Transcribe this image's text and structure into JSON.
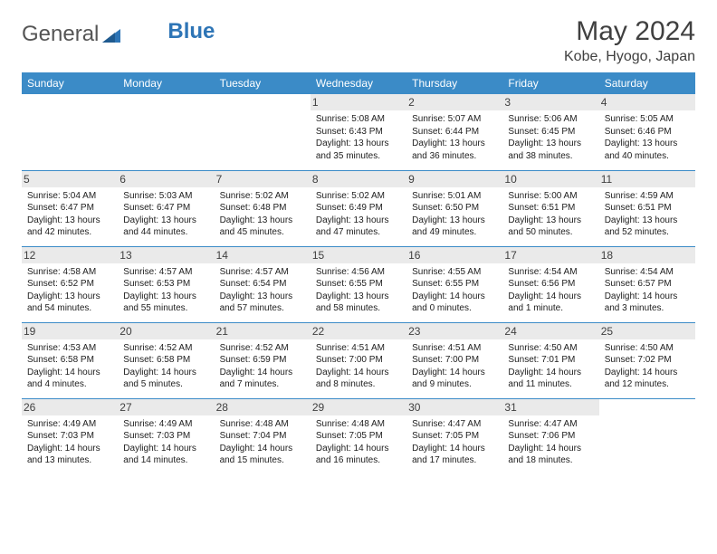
{
  "logo": {
    "text1": "General",
    "text2": "Blue"
  },
  "title": "May 2024",
  "location": "Kobe, Hyogo, Japan",
  "colors": {
    "header_bg": "#3b8bc7",
    "header_text": "#ffffff",
    "daynum_bg": "#eaeaea",
    "border": "#3b8bc7",
    "logo_gray": "#555555",
    "logo_blue": "#2e75b6",
    "text": "#202020"
  },
  "daysOfWeek": [
    "Sunday",
    "Monday",
    "Tuesday",
    "Wednesday",
    "Thursday",
    "Friday",
    "Saturday"
  ],
  "weeks": [
    [
      null,
      null,
      null,
      {
        "n": "1",
        "sr": "Sunrise: 5:08 AM",
        "ss": "Sunset: 6:43 PM",
        "d1": "Daylight: 13 hours",
        "d2": "and 35 minutes."
      },
      {
        "n": "2",
        "sr": "Sunrise: 5:07 AM",
        "ss": "Sunset: 6:44 PM",
        "d1": "Daylight: 13 hours",
        "d2": "and 36 minutes."
      },
      {
        "n": "3",
        "sr": "Sunrise: 5:06 AM",
        "ss": "Sunset: 6:45 PM",
        "d1": "Daylight: 13 hours",
        "d2": "and 38 minutes."
      },
      {
        "n": "4",
        "sr": "Sunrise: 5:05 AM",
        "ss": "Sunset: 6:46 PM",
        "d1": "Daylight: 13 hours",
        "d2": "and 40 minutes."
      }
    ],
    [
      {
        "n": "5",
        "sr": "Sunrise: 5:04 AM",
        "ss": "Sunset: 6:47 PM",
        "d1": "Daylight: 13 hours",
        "d2": "and 42 minutes."
      },
      {
        "n": "6",
        "sr": "Sunrise: 5:03 AM",
        "ss": "Sunset: 6:47 PM",
        "d1": "Daylight: 13 hours",
        "d2": "and 44 minutes."
      },
      {
        "n": "7",
        "sr": "Sunrise: 5:02 AM",
        "ss": "Sunset: 6:48 PM",
        "d1": "Daylight: 13 hours",
        "d2": "and 45 minutes."
      },
      {
        "n": "8",
        "sr": "Sunrise: 5:02 AM",
        "ss": "Sunset: 6:49 PM",
        "d1": "Daylight: 13 hours",
        "d2": "and 47 minutes."
      },
      {
        "n": "9",
        "sr": "Sunrise: 5:01 AM",
        "ss": "Sunset: 6:50 PM",
        "d1": "Daylight: 13 hours",
        "d2": "and 49 minutes."
      },
      {
        "n": "10",
        "sr": "Sunrise: 5:00 AM",
        "ss": "Sunset: 6:51 PM",
        "d1": "Daylight: 13 hours",
        "d2": "and 50 minutes."
      },
      {
        "n": "11",
        "sr": "Sunrise: 4:59 AM",
        "ss": "Sunset: 6:51 PM",
        "d1": "Daylight: 13 hours",
        "d2": "and 52 minutes."
      }
    ],
    [
      {
        "n": "12",
        "sr": "Sunrise: 4:58 AM",
        "ss": "Sunset: 6:52 PM",
        "d1": "Daylight: 13 hours",
        "d2": "and 54 minutes."
      },
      {
        "n": "13",
        "sr": "Sunrise: 4:57 AM",
        "ss": "Sunset: 6:53 PM",
        "d1": "Daylight: 13 hours",
        "d2": "and 55 minutes."
      },
      {
        "n": "14",
        "sr": "Sunrise: 4:57 AM",
        "ss": "Sunset: 6:54 PM",
        "d1": "Daylight: 13 hours",
        "d2": "and 57 minutes."
      },
      {
        "n": "15",
        "sr": "Sunrise: 4:56 AM",
        "ss": "Sunset: 6:55 PM",
        "d1": "Daylight: 13 hours",
        "d2": "and 58 minutes."
      },
      {
        "n": "16",
        "sr": "Sunrise: 4:55 AM",
        "ss": "Sunset: 6:55 PM",
        "d1": "Daylight: 14 hours",
        "d2": "and 0 minutes."
      },
      {
        "n": "17",
        "sr": "Sunrise: 4:54 AM",
        "ss": "Sunset: 6:56 PM",
        "d1": "Daylight: 14 hours",
        "d2": "and 1 minute."
      },
      {
        "n": "18",
        "sr": "Sunrise: 4:54 AM",
        "ss": "Sunset: 6:57 PM",
        "d1": "Daylight: 14 hours",
        "d2": "and 3 minutes."
      }
    ],
    [
      {
        "n": "19",
        "sr": "Sunrise: 4:53 AM",
        "ss": "Sunset: 6:58 PM",
        "d1": "Daylight: 14 hours",
        "d2": "and 4 minutes."
      },
      {
        "n": "20",
        "sr": "Sunrise: 4:52 AM",
        "ss": "Sunset: 6:58 PM",
        "d1": "Daylight: 14 hours",
        "d2": "and 5 minutes."
      },
      {
        "n": "21",
        "sr": "Sunrise: 4:52 AM",
        "ss": "Sunset: 6:59 PM",
        "d1": "Daylight: 14 hours",
        "d2": "and 7 minutes."
      },
      {
        "n": "22",
        "sr": "Sunrise: 4:51 AM",
        "ss": "Sunset: 7:00 PM",
        "d1": "Daylight: 14 hours",
        "d2": "and 8 minutes."
      },
      {
        "n": "23",
        "sr": "Sunrise: 4:51 AM",
        "ss": "Sunset: 7:00 PM",
        "d1": "Daylight: 14 hours",
        "d2": "and 9 minutes."
      },
      {
        "n": "24",
        "sr": "Sunrise: 4:50 AM",
        "ss": "Sunset: 7:01 PM",
        "d1": "Daylight: 14 hours",
        "d2": "and 11 minutes."
      },
      {
        "n": "25",
        "sr": "Sunrise: 4:50 AM",
        "ss": "Sunset: 7:02 PM",
        "d1": "Daylight: 14 hours",
        "d2": "and 12 minutes."
      }
    ],
    [
      {
        "n": "26",
        "sr": "Sunrise: 4:49 AM",
        "ss": "Sunset: 7:03 PM",
        "d1": "Daylight: 14 hours",
        "d2": "and 13 minutes."
      },
      {
        "n": "27",
        "sr": "Sunrise: 4:49 AM",
        "ss": "Sunset: 7:03 PM",
        "d1": "Daylight: 14 hours",
        "d2": "and 14 minutes."
      },
      {
        "n": "28",
        "sr": "Sunrise: 4:48 AM",
        "ss": "Sunset: 7:04 PM",
        "d1": "Daylight: 14 hours",
        "d2": "and 15 minutes."
      },
      {
        "n": "29",
        "sr": "Sunrise: 4:48 AM",
        "ss": "Sunset: 7:05 PM",
        "d1": "Daylight: 14 hours",
        "d2": "and 16 minutes."
      },
      {
        "n": "30",
        "sr": "Sunrise: 4:47 AM",
        "ss": "Sunset: 7:05 PM",
        "d1": "Daylight: 14 hours",
        "d2": "and 17 minutes."
      },
      {
        "n": "31",
        "sr": "Sunrise: 4:47 AM",
        "ss": "Sunset: 7:06 PM",
        "d1": "Daylight: 14 hours",
        "d2": "and 18 minutes."
      },
      null
    ]
  ]
}
